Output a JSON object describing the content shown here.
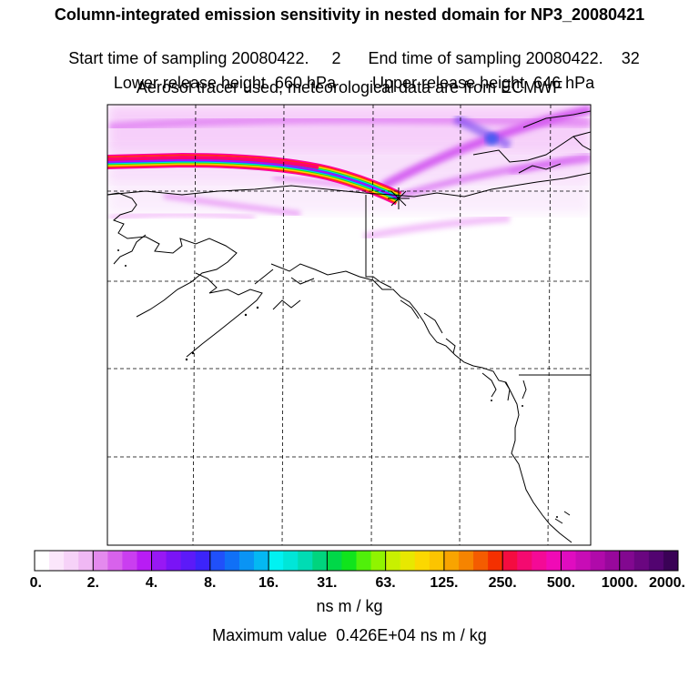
{
  "header": {
    "line1": "Column-integrated emission sensitivity in nested domain for NP3_20080421",
    "line2_start_label": "Start time of sampling 20080422.",
    "line2_start_value": "2",
    "line2_end_label": "End time of sampling 20080422.",
    "line2_end_value": "32",
    "line3_lower": "Lower release height  660 hPa",
    "line3_upper": "Upper release height  646 hPa",
    "line4": "Aerosol tracer used, meteorological data are from ECMWF"
  },
  "legend": {
    "tick_labels": [
      "0.",
      "2.",
      "4.",
      "8.",
      "16.",
      "31.",
      "63.",
      "125.",
      "250.",
      "500.",
      "1000.",
      "2000."
    ],
    "colors": [
      "#ffffff",
      "#fbe6fb",
      "#f6d2f8",
      "#f0b8f4",
      "#e48aee",
      "#d862ec",
      "#ca3ef0",
      "#b81cf4",
      "#9818f4",
      "#7a14f6",
      "#5c1af8",
      "#3c24fa",
      "#2050fa",
      "#1070f6",
      "#0a94f4",
      "#04b8f2",
      "#00f2f2",
      "#00e6d8",
      "#00dcb4",
      "#00d47e",
      "#00d848",
      "#10e41c",
      "#50f00a",
      "#90f400",
      "#c8f000",
      "#e8e800",
      "#fcd800",
      "#fcc400",
      "#f8a400",
      "#f68400",
      "#f45c00",
      "#f43000",
      "#f40c40",
      "#f40a70",
      "#f40a96",
      "#f00ab6",
      "#e00cc0",
      "#c80cb6",
      "#b00aaa",
      "#98089c",
      "#820890",
      "#6a0680",
      "#520470",
      "#3a0256"
    ],
    "units": "ns m / kg",
    "max_value_text": "Maximum value  0.426E+04 ns m / kg"
  },
  "map": {
    "marker": "release-point-star",
    "plume_colors": [
      "#ff00a0",
      "#ff3010",
      "#ffd000",
      "#30e000",
      "#00e0e0",
      "#2060ff",
      "#c000ff"
    ],
    "sensitivity_color": "#e040f0",
    "coastline_color": "#000000",
    "grid_color": "#000000"
  }
}
